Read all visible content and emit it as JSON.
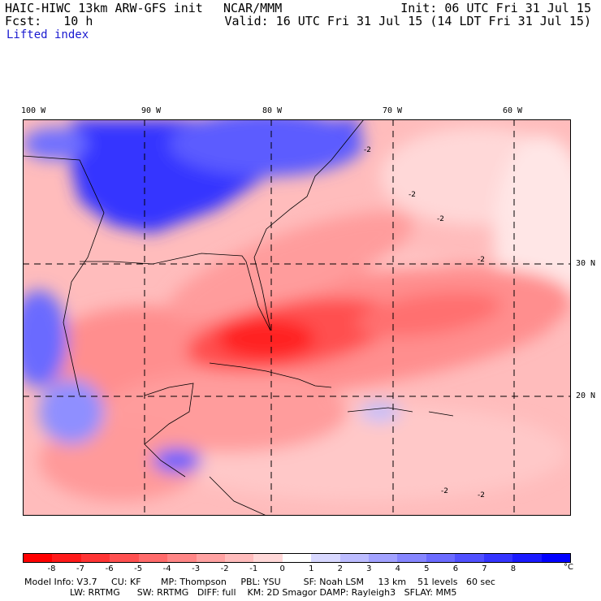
{
  "header": {
    "model_line": "HAIC-HIWC 13km ARW-GFS init",
    "org": "NCAR/MMM",
    "init": "Init: 06 UTC Fri 31 Jul 15",
    "fcst": "Fcst:   10 h",
    "valid": "Valid: 16 UTC Fri 31 Jul 15 (14 LDT Fri 31 Jul 15)",
    "field": "Lifted index"
  },
  "map": {
    "longitude_labels": [
      "100 W",
      "90 W",
      "80 W",
      "70 W",
      "60 W"
    ],
    "latitude_labels": [
      "30 N",
      "20 N"
    ],
    "contour_labels": [
      "-2",
      "-2",
      "-2",
      "-2",
      "-2",
      "-2"
    ]
  },
  "colorbar": {
    "ticks": [
      "-8",
      "-7",
      "-6",
      "-5",
      "-4",
      "-3",
      "-2",
      "-1",
      "0",
      "1",
      "2",
      "3",
      "4",
      "5",
      "6",
      "7",
      "8"
    ],
    "unit": "°C",
    "colors": [
      "#ff0000",
      "#ff1a1a",
      "#ff3434",
      "#ff5050",
      "#ff6b6b",
      "#ff8686",
      "#ffa2a2",
      "#ffbcbc",
      "#ffd8d8",
      "#ffffff",
      "#d8d8ff",
      "#bcbcff",
      "#a2a2ff",
      "#8686ff",
      "#6b6bff",
      "#5050ff",
      "#3434ff",
      "#1a1aff",
      "#0000ff"
    ]
  },
  "footer": {
    "line1": "Model Info: V3.7     CU: KF       MP: Thompson     PBL: YSU        SF: Noah LSM     13 km    51 levels   60 sec",
    "line2": "                LW: RRTMG      SW: RRTMG   DIFF: full    KM: 2D Smagor DAMP: Rayleigh3   SFLAY: MM5"
  }
}
